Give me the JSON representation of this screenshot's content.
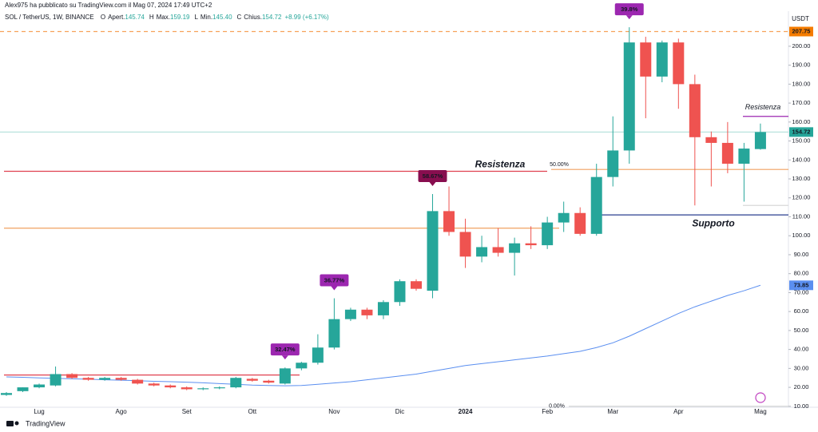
{
  "header": {
    "author_line": "Alex975 ha pubblicato su TradingView.com il Mag 07, 2024 17:49 UTC+2",
    "symbol": "SOL / TetherUS, 1W, BINANCE",
    "ohlc": [
      {
        "key": "O",
        "name": "Apert.",
        "value": "145.74"
      },
      {
        "key": "H",
        "name": "Max.",
        "value": "159.19"
      },
      {
        "key": "L",
        "name": "Min.",
        "value": "145.40"
      },
      {
        "key": "C",
        "name": "Chius.",
        "value": "154.72"
      }
    ],
    "change": "+8.99 (+6.17%)"
  },
  "footer": {
    "brand": "TradingView"
  },
  "chart_data": {
    "type": "candlestick",
    "currency": "USDT",
    "categories": [
      null,
      null,
      "Lug",
      null,
      null,
      null,
      null,
      "Ago",
      null,
      null,
      null,
      "Set",
      null,
      null,
      null,
      "Ott",
      null,
      null,
      null,
      null,
      "Nov",
      null,
      null,
      null,
      "Dic",
      null,
      null,
      null,
      "2024",
      null,
      null,
      null,
      null,
      "Feb",
      null,
      null,
      null,
      "Mar",
      null,
      null,
      null,
      "Apr",
      null,
      null,
      null,
      null,
      "Mag"
    ],
    "open": [
      16,
      18,
      20,
      21,
      27,
      25,
      24,
      25,
      24,
      22,
      21,
      20,
      19,
      19.5,
      20,
      24.5,
      23.5,
      22,
      30,
      33,
      41,
      56,
      61,
      58,
      65,
      76,
      71,
      113,
      102,
      89,
      94,
      91,
      96,
      95,
      107,
      112,
      101,
      131,
      145,
      202,
      184,
      202,
      180,
      152,
      149,
      138,
      145.74
    ],
    "high": [
      17.5,
      20,
      22,
      31,
      27.5,
      25.5,
      25.5,
      25.5,
      24.5,
      22.5,
      21.5,
      20.5,
      20,
      20.5,
      25.5,
      25,
      24,
      30.5,
      33.5,
      48,
      67,
      62,
      62,
      66,
      77,
      77,
      122,
      126,
      109,
      100,
      104,
      99,
      105,
      110,
      118,
      115,
      138,
      163,
      210,
      205,
      203,
      204,
      185,
      155,
      160,
      149,
      159.19
    ],
    "low": [
      15.5,
      17.5,
      19.5,
      20.5,
      24.5,
      23.5,
      23.5,
      23.5,
      21.5,
      20.5,
      19.5,
      18.5,
      18.5,
      19,
      19.5,
      23,
      22,
      21.5,
      29,
      32,
      40,
      55,
      56,
      56,
      63,
      71,
      67,
      100,
      83,
      86,
      89,
      79,
      93,
      93,
      102,
      100,
      100,
      126,
      138,
      162,
      181,
      167,
      116,
      126,
      133,
      118,
      145.4
    ],
    "close": [
      17,
      20,
      21.5,
      27,
      25,
      24,
      25,
      24,
      22,
      21,
      20,
      19,
      19.5,
      20,
      25,
      23.5,
      22.5,
      30,
      33,
      41,
      56,
      61,
      58,
      65,
      76,
      72,
      113,
      102,
      89,
      94,
      91,
      96,
      95,
      107,
      112,
      101,
      131,
      145,
      202,
      184,
      202,
      180,
      152,
      149,
      138,
      146,
      154.72
    ],
    "up_color": "#26a69a",
    "down_color": "#ef5350",
    "moving_average": {
      "color": "#5b8ff0",
      "values": [
        25.5,
        25.3,
        25,
        24.8,
        24.5,
        24.3,
        24,
        23.8,
        23.5,
        23.2,
        23,
        22.7,
        22.4,
        22,
        21.6,
        21.2,
        21,
        20.8,
        21,
        21.6,
        22.3,
        23,
        24,
        25,
        26,
        27,
        28.5,
        30,
        31.5,
        32.5,
        33.5,
        34.5,
        35.5,
        36.5,
        37.8,
        39,
        41,
        43.5,
        47,
        51,
        55,
        59,
        62.5,
        65.5,
        68.5,
        71,
        73.85
      ]
    },
    "levels": [
      {
        "value": 207.75,
        "color": "#f7a25a",
        "style": "dashed"
      },
      {
        "value": 154.72,
        "color": "#b9e3dd",
        "style": "solid"
      },
      {
        "value": 134,
        "color": "#e0404f",
        "style": "solid",
        "label": "Resistenza"
      },
      {
        "value": 104,
        "color": "#f0a060",
        "style": "solid"
      },
      {
        "value": 135,
        "color": "#f0a060",
        "style": "solid",
        "label": "50.00%"
      },
      {
        "value": 111,
        "color": "#2a3f8f",
        "style": "solid",
        "label": "Supporto"
      },
      {
        "value": 163,
        "color": "#9c27b0",
        "style": "solid",
        "label": "Resistenza"
      },
      {
        "value": 10,
        "color": "#d0d0d0",
        "style": "solid",
        "label": "0.00%"
      },
      {
        "value": 116,
        "color": "#d8d8d8",
        "style": "solid"
      },
      {
        "value": 26.5,
        "color": "#e0404f",
        "style": "solid"
      }
    ],
    "annotations": [
      {
        "text": "32.47%",
        "index": 17,
        "color": "#9c27b0"
      },
      {
        "text": "36.77%",
        "index": 20,
        "color": "#9c27b0"
      },
      {
        "text": "58.67%",
        "index": 26,
        "color": "#880e4f"
      },
      {
        "text": "39.8%",
        "index": 38,
        "color": "#9c27b0"
      }
    ],
    "price_labels": [
      {
        "value": 207.75,
        "color": "#f57c00"
      },
      {
        "value": 154.72,
        "color": "#26a69a"
      },
      {
        "value": 73.85,
        "color": "#5b8ff0"
      }
    ],
    "ylim": [
      9.5,
      218.5
    ],
    "yticks": [
      {
        "value": 10,
        "label": "10.00"
      },
      {
        "value": 20,
        "label": "20.00"
      },
      {
        "value": 30,
        "label": "30.00"
      },
      {
        "value": 40,
        "label": "40.00"
      },
      {
        "value": 50,
        "label": "50.00"
      },
      {
        "value": 60,
        "label": "60.00"
      },
      {
        "value": 70,
        "label": "70.00"
      },
      {
        "value": 80,
        "label": "80.00"
      },
      {
        "value": 90,
        "label": "90.00"
      },
      {
        "value": 100,
        "label": "100.00"
      },
      {
        "value": 110,
        "label": "110.00"
      },
      {
        "value": 120,
        "label": "120.00"
      },
      {
        "value": 130,
        "label": "130.00"
      },
      {
        "value": 140,
        "label": "140.00"
      },
      {
        "value": 150,
        "label": "150.00"
      },
      {
        "value": 160,
        "label": "160.00"
      },
      {
        "value": 170,
        "label": "170.00"
      },
      {
        "value": 180,
        "label": "180.00"
      },
      {
        "value": 190,
        "label": "190.00"
      },
      {
        "value": 200,
        "label": "200.00"
      }
    ],
    "grid": false
  }
}
